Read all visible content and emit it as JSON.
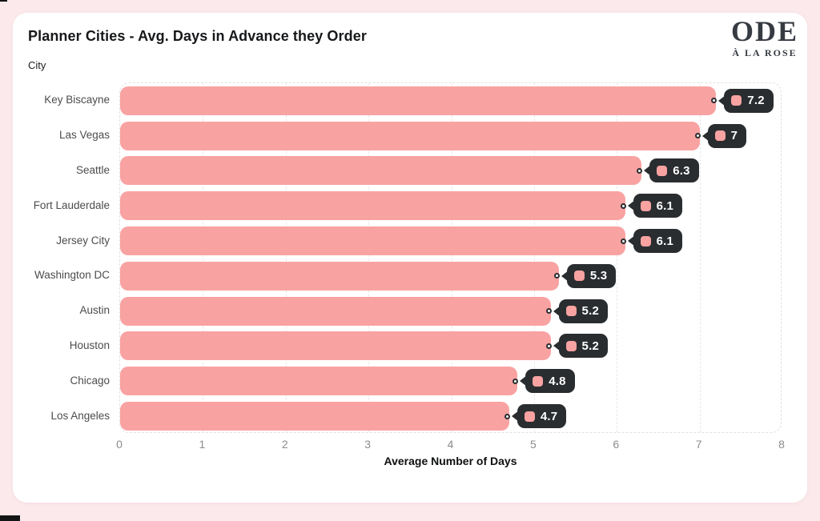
{
  "page": {
    "logo": {
      "line1": "ODE",
      "line2": "À LA ROSE"
    }
  },
  "chart_data": {
    "type": "bar",
    "orientation": "horizontal",
    "title": "Planner Cities - Avg. Days in Advance they Order",
    "ylabel": "City",
    "xlabel": "Average Number of Days",
    "categories": [
      "Key Biscayne",
      "Las Vegas",
      "Seattle",
      "Fort Lauderdale",
      "Jersey City",
      "Washington DC",
      "Austin",
      "Houston",
      "Chicago",
      "Los Angeles"
    ],
    "values": [
      7.2,
      7,
      6.3,
      6.1,
      6.1,
      5.3,
      5.2,
      5.2,
      4.8,
      4.7
    ],
    "value_labels": [
      "7.2",
      "7",
      "6.3",
      "6.1",
      "6.1",
      "5.3",
      "5.2",
      "5.2",
      "4.8",
      "4.7"
    ],
    "xlim": [
      0,
      8
    ],
    "x_ticks": [
      0,
      1,
      2,
      3,
      4,
      5,
      6,
      7,
      8
    ],
    "grid": "vertical-dashed",
    "legend": "none",
    "colors": {
      "bar": "#F9A2A2",
      "tooltip_bg": "#2A2D30",
      "tooltip_text": "#FFFFFF",
      "frame_bg": "#FBE9EC",
      "card_bg": "#FFFFFF",
      "grid_line": "#EDE6E7",
      "grid_border": "#E7E0E1",
      "tick_text": "#8B8B8B",
      "category_text": "#4C4C4C"
    }
  }
}
